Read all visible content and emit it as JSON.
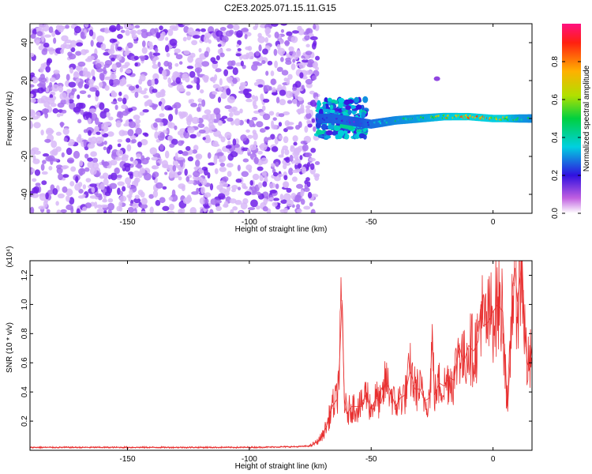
{
  "title": "C2E3.2025.071.15.11.G15",
  "chart_data": [
    {
      "type": "heatmap",
      "name": "spectrogram",
      "xlabel": "Height of straight line (km)",
      "ylabel": "Frequency (Hz)",
      "xlim": [
        -190,
        16
      ],
      "ylim": [
        -50,
        50
      ],
      "xticks": [
        -150,
        -100,
        -50,
        0
      ],
      "xtick_labels": [
        "-150",
        "-100",
        "-50",
        "0"
      ],
      "yticks": [
        -40,
        -20,
        0,
        20,
        40
      ],
      "ytick_labels": [
        "-40",
        "-20",
        "0",
        "20",
        "40"
      ],
      "noise_region": {
        "x_range": [
          -190,
          -72
        ],
        "y_range": [
          -50,
          50
        ],
        "amplitude": 0.15
      },
      "signal_band": {
        "x": [
          -72,
          -65,
          -60,
          -55,
          -50,
          -45,
          -40,
          -30,
          -20,
          -10,
          0,
          5,
          10,
          16
        ],
        "frequency": [
          0,
          0,
          -1,
          -2,
          -3,
          -2,
          -1,
          0,
          1,
          1,
          0,
          0,
          0,
          0
        ],
        "amplitude": [
          0.2,
          0.3,
          0.3,
          0.2,
          0.35,
          0.4,
          0.5,
          0.6,
          0.8,
          0.9,
          0.85,
          0.85,
          0.6,
          0.5
        ]
      },
      "colorbar": {
        "label": "Normalized spectral amplitude",
        "range": [
          0,
          1
        ],
        "ticks": [
          0.0,
          0.2,
          0.4,
          0.6,
          0.8
        ],
        "tick_labels": [
          "0.0",
          "0.2",
          "0.4",
          "0.6",
          "0.8"
        ]
      }
    },
    {
      "type": "line",
      "name": "snr",
      "xlabel": "Height of straight line (km)",
      "ylabel": "SNR (10 * v/v)",
      "scale_label": "(x10⁴)",
      "xlim": [
        -190,
        16
      ],
      "ylim": [
        0,
        1.3
      ],
      "xticks": [
        -150,
        -100,
        -50,
        0
      ],
      "xtick_labels": [
        "-150",
        "-100",
        "-50",
        "0"
      ],
      "yticks": [
        0.2,
        0.4,
        0.6,
        0.8,
        1.0,
        1.2
      ],
      "ytick_labels": [
        "0.2",
        "0.4",
        "0.6",
        "0.8",
        "1.0",
        "1.2"
      ],
      "color": "#e83030",
      "series": [
        {
          "name": "SNR",
          "x": [
            -190,
            -150,
            -100,
            -80,
            -75,
            -72,
            -70,
            -68,
            -66,
            -64,
            -63,
            -62,
            -61,
            -60,
            -58,
            -56,
            -54,
            -52,
            -50,
            -48,
            -46,
            -44,
            -42,
            -40,
            -38,
            -36,
            -34,
            -32,
            -30,
            -28,
            -26,
            -25,
            -24,
            -22,
            -20,
            -18,
            -16,
            -14,
            -12,
            -10,
            -8,
            -6,
            -5,
            -4,
            -2,
            0,
            2,
            4,
            5,
            6,
            7,
            8,
            9,
            10,
            11,
            12,
            13,
            14,
            15,
            16
          ],
          "y": [
            0.02,
            0.02,
            0.02,
            0.025,
            0.03,
            0.06,
            0.1,
            0.18,
            0.3,
            0.35,
            0.6,
            1.03,
            0.35,
            0.25,
            0.3,
            0.3,
            0.3,
            0.4,
            0.28,
            0.36,
            0.32,
            0.48,
            0.4,
            0.3,
            0.36,
            0.38,
            0.55,
            0.42,
            0.42,
            0.34,
            0.36,
            0.75,
            0.38,
            0.46,
            0.44,
            0.5,
            0.48,
            0.72,
            0.6,
            0.72,
            0.68,
            0.75,
            1.0,
            0.85,
            0.88,
            0.95,
            1.0,
            0.95,
            0.6,
            0.28,
            0.62,
            1.12,
            1.25,
            1.02,
            1.18,
            1.28,
            0.8,
            0.6,
            0.55,
            0.72
          ]
        }
      ]
    }
  ],
  "colors": {
    "line": "#e83030",
    "noise": "#7a2be8",
    "axis": "#000000"
  }
}
